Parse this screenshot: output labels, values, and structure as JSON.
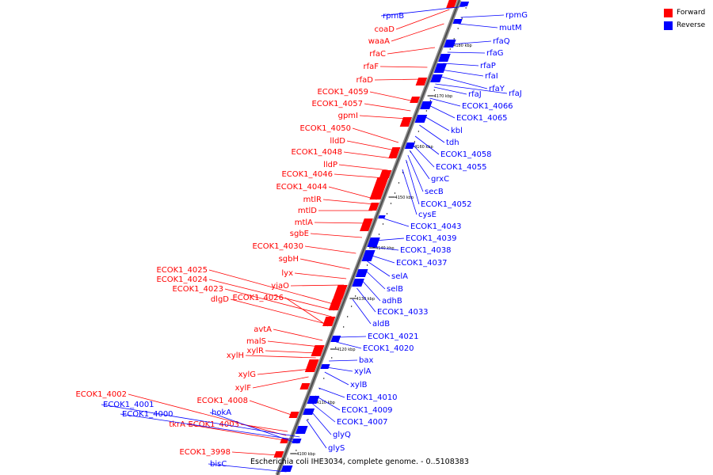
{
  "legend": [
    {
      "label": "Forward",
      "color": "#ff0000"
    },
    {
      "label": "Reverse",
      "color": "#0000ff"
    }
  ],
  "caption": "Escherichia coli IHE3034, complete genome. - 0..5108383",
  "colors": {
    "forward": "#ff0000",
    "reverse": "#0000ff",
    "backbone": "#666666"
  },
  "ticks": [
    "4100 kbp",
    "4110 kbp",
    "4120 kbp",
    "4130 kbp",
    "4140 kbp",
    "4150 kbp",
    "4160 kbp",
    "4170 kbp",
    "4180 kbp"
  ],
  "forward_labels": [
    "coaD",
    "waaA",
    "rfaC",
    "rfaF",
    "rfaD",
    "ECOK1_4059",
    "ECOK1_4057",
    "gpmI",
    "ECOK1_4050",
    "lldD",
    "ECOK1_4048",
    "lldP",
    "ECOK1_4046",
    "ECOK1_4044",
    "mtlR",
    "mtlD",
    "mtlA",
    "sgbE",
    "ECOK1_4030",
    "sgbH",
    "lyx",
    "yiaO",
    "ECOK1_4025",
    "ECOK1_4024",
    "ECOK1_4023",
    "dlgD",
    "ECOK1_4026",
    "avtA",
    "malS",
    "xylR",
    "xylH",
    "xylG",
    "xylF",
    "ECOK1_4008",
    "ECOK1_4003",
    "ECOK1_4002",
    "tkrA",
    "ECOK1_3998"
  ],
  "reverse_labels": [
    "rpmB",
    "rpmG",
    "mutM",
    "rfaQ",
    "rfaG",
    "rfaP",
    "rfaI",
    "rfaY",
    "rfaJ",
    "rfaJ",
    "ECOK1_4066",
    "ECOK1_4065",
    "kbl",
    "tdh",
    "ECOK1_4058",
    "ECOK1_4055",
    "grxC",
    "secB",
    "ECOK1_4052",
    "cysE",
    "ECOK1_4043",
    "ECOK1_4039",
    "ECOK1_4038",
    "ECOK1_4037",
    "selA",
    "selB",
    "adhB",
    "ECOK1_4033",
    "aldB",
    "ECOK1_4021",
    "ECOK1_4020",
    "bax",
    "xylA",
    "xylB",
    "ECOK1_4010",
    "ECOK1_4009",
    "ECOK1_4007",
    "glyQ",
    "glyS",
    "ECOK1_4001",
    "ECOK1_4000",
    "hokA",
    "bisC"
  ]
}
